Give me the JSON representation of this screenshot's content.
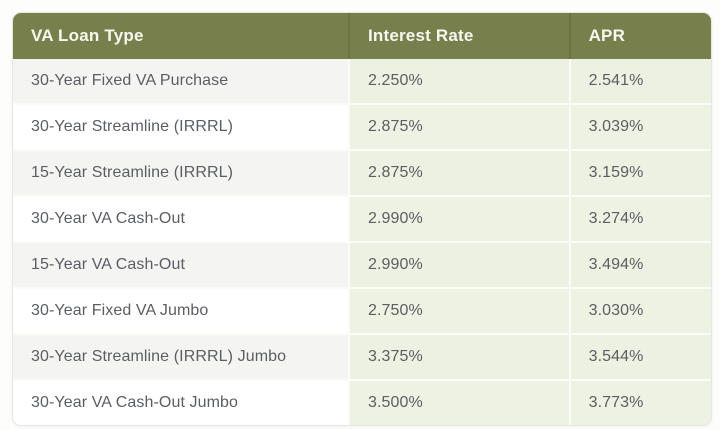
{
  "page": {
    "description_label": "VA loan rates comparison table"
  },
  "colors": {
    "header_bg": "#77804c",
    "header_divider": "#6c7342",
    "header_text": "#f7f7ee",
    "rate_cell_bg": "#edf1e1",
    "alt_row_bg": "#f4f4f2",
    "row_bg": "#ffffff",
    "body_text": "#5b5e62",
    "page_bg": "#fdfdfc"
  },
  "chart_data": {
    "type": "table",
    "title": "",
    "columns": [
      "VA Loan Type",
      "Interest Rate",
      "APR"
    ],
    "rows": [
      [
        "30-Year Fixed VA Purchase",
        "2.250%",
        "2.541%"
      ],
      [
        "30-Year Streamline (IRRRL)",
        "2.875%",
        "3.039%"
      ],
      [
        "15-Year Streamline (IRRRL)",
        "2.875%",
        "3.159%"
      ],
      [
        "30-Year VA Cash-Out",
        "2.990%",
        "3.274%"
      ],
      [
        "15-Year VA Cash-Out",
        "2.990%",
        "3.494%"
      ],
      [
        "30-Year Fixed VA Jumbo",
        "2.750%",
        "3.030%"
      ],
      [
        "30-Year Streamline (IRRRL) Jumbo",
        "3.375%",
        "3.544%"
      ],
      [
        "30-Year VA Cash-Out Jumbo",
        "3.500%",
        "3.773%"
      ]
    ]
  }
}
